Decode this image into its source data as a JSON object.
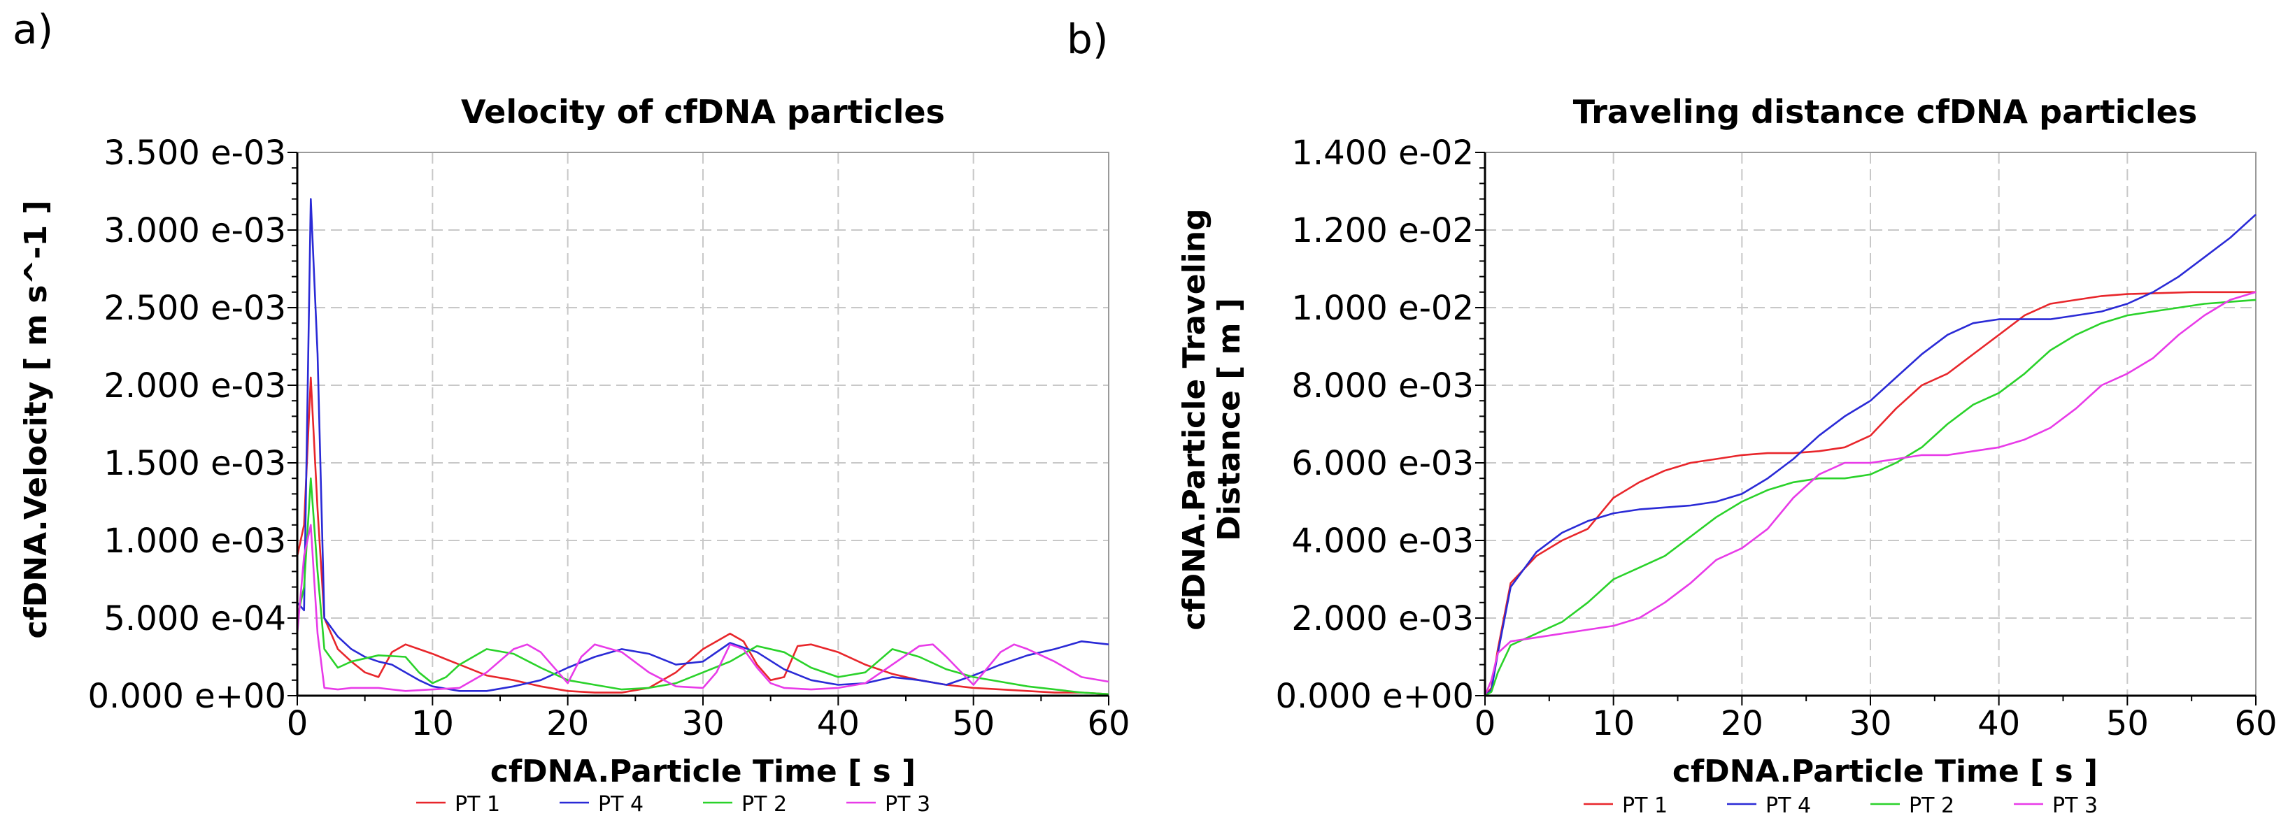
{
  "panels": [
    "a)",
    "b)"
  ],
  "chart_data": [
    {
      "type": "line",
      "panel": "a)",
      "title": "Velocity of cfDNA particles",
      "xlabel": "cfDNA.Particle Time [ s ]",
      "ylabel": "cfDNA.Velocity [ m s^-1 ]",
      "xlim": [
        0,
        60
      ],
      "ylim": [
        0,
        0.0035
      ],
      "xticks": [
        0,
        10,
        20,
        30,
        40,
        50,
        60
      ],
      "yticks": [
        0,
        0.0005,
        0.001,
        0.0015,
        0.002,
        0.0025,
        0.003,
        0.0035
      ],
      "ytick_labels": [
        "0.000 e+00",
        "5.000 e-04",
        "1.000 e-03",
        "1.500 e-03",
        "2.000 e-03",
        "2.500 e-03",
        "3.000 e-03",
        "3.500 e-03"
      ],
      "grid": true,
      "legend_position": "bottom",
      "series": [
        {
          "name": "PT 1",
          "color": "#e8262b",
          "x": [
            0,
            0.5,
            1,
            1.5,
            2,
            3,
            4,
            5,
            6,
            7,
            8,
            9,
            10,
            12,
            14,
            16,
            18,
            20,
            22,
            24,
            26,
            28,
            30,
            32,
            33,
            34,
            35,
            36,
            37,
            38,
            40,
            42,
            44,
            46,
            48,
            50,
            52,
            54,
            56,
            58,
            60
          ],
          "y": [
            0.0009,
            0.0011,
            0.00205,
            0.0012,
            0.0005,
            0.0003,
            0.00022,
            0.00015,
            0.00012,
            0.00028,
            0.00033,
            0.0003,
            0.00027,
            0.0002,
            0.00013,
            0.0001,
            6e-05,
            3e-05,
            2e-05,
            2e-05,
            5e-05,
            0.00015,
            0.0003,
            0.0004,
            0.00035,
            0.0002,
            0.0001,
            0.00012,
            0.00032,
            0.00033,
            0.00028,
            0.0002,
            0.00014,
            0.0001,
            7e-05,
            5e-05,
            4e-05,
            3e-05,
            2e-05,
            2e-05,
            1e-05
          ]
        },
        {
          "name": "PT 4",
          "color": "#2a2ad6",
          "x": [
            0,
            0.5,
            1,
            1.5,
            2,
            3,
            4,
            5,
            6,
            7,
            8,
            9,
            10,
            12,
            14,
            16,
            18,
            20,
            22,
            24,
            26,
            28,
            30,
            32,
            34,
            36,
            38,
            40,
            42,
            44,
            46,
            48,
            50,
            52,
            54,
            56,
            58,
            60
          ],
          "y": [
            0.0006,
            0.00055,
            0.0032,
            0.0022,
            0.0005,
            0.00038,
            0.0003,
            0.00025,
            0.00022,
            0.0002,
            0.00015,
            0.0001,
            6e-05,
            3e-05,
            3e-05,
            6e-05,
            0.0001,
            0.00018,
            0.00025,
            0.0003,
            0.00027,
            0.0002,
            0.00022,
            0.00034,
            0.00028,
            0.00017,
            0.0001,
            7e-05,
            8e-05,
            0.00012,
            0.0001,
            7e-05,
            0.00013,
            0.0002,
            0.00026,
            0.0003,
            0.00035,
            0.00033
          ]
        },
        {
          "name": "PT 2",
          "color": "#2ad22a",
          "x": [
            0,
            0.5,
            1,
            1.5,
            2,
            3,
            4,
            6,
            8,
            9,
            10,
            11,
            12,
            14,
            16,
            18,
            20,
            22,
            24,
            26,
            28,
            30,
            32,
            34,
            36,
            38,
            40,
            42,
            44,
            46,
            48,
            50,
            52,
            54,
            56,
            58,
            60
          ],
          "y": [
            0.0005,
            0.0007,
            0.0014,
            0.0008,
            0.0003,
            0.00018,
            0.00022,
            0.00026,
            0.00025,
            0.00015,
            8e-05,
            0.00012,
            0.0002,
            0.0003,
            0.00027,
            0.00018,
            0.0001,
            7e-05,
            4e-05,
            5e-05,
            8e-05,
            0.00015,
            0.00022,
            0.00032,
            0.00028,
            0.00018,
            0.00012,
            0.00015,
            0.0003,
            0.00025,
            0.00017,
            0.00012,
            9e-05,
            6e-05,
            4e-05,
            2e-05,
            1e-05
          ]
        },
        {
          "name": "PT 3",
          "color": "#e83be8",
          "x": [
            0,
            0.5,
            1,
            1.5,
            2,
            3,
            4,
            6,
            8,
            10,
            12,
            14,
            16,
            17,
            18,
            20,
            21,
            22,
            24,
            26,
            28,
            30,
            31,
            32,
            33,
            34,
            35,
            36,
            38,
            40,
            42,
            44,
            46,
            47,
            48,
            50,
            52,
            53,
            54,
            56,
            58,
            60
          ],
          "y": [
            0.0004,
            0.0009,
            0.0011,
            0.0004,
            5e-05,
            4e-05,
            5e-05,
            5e-05,
            3e-05,
            4e-05,
            5e-05,
            0.00015,
            0.0003,
            0.00033,
            0.00028,
            8e-05,
            0.00025,
            0.00033,
            0.00028,
            0.00015,
            6e-05,
            5e-05,
            0.00015,
            0.00033,
            0.0003,
            0.00018,
            8e-05,
            5e-05,
            4e-05,
            5e-05,
            8e-05,
            0.0002,
            0.00032,
            0.00033,
            0.00025,
            7e-05,
            0.00028,
            0.00033,
            0.0003,
            0.00022,
            0.00012,
            9e-05
          ]
        }
      ]
    },
    {
      "type": "line",
      "panel": "b)",
      "title": "Traveling distance cfDNA particles",
      "xlabel": "cfDNA.Particle Time [ s ]",
      "ylabel": "cfDNA.Particle Traveling Distance [ m ]",
      "ylabel_lines": [
        "cfDNA.Particle Traveling",
        "Distance [ m ]"
      ],
      "xlim": [
        0,
        60
      ],
      "ylim": [
        0,
        0.014
      ],
      "xticks": [
        0,
        10,
        20,
        30,
        40,
        50,
        60
      ],
      "yticks": [
        0,
        0.002,
        0.004,
        0.006,
        0.008,
        0.01,
        0.012,
        0.014
      ],
      "ytick_labels": [
        "0.000 e+00",
        "2.000 e-03",
        "4.000 e-03",
        "6.000 e-03",
        "8.000 e-03",
        "1.000 e-02",
        "1.200 e-02",
        "1.400 e-02"
      ],
      "grid": true,
      "legend_position": "bottom",
      "series": [
        {
          "name": "PT 1",
          "color": "#e8262b",
          "x": [
            0,
            0.5,
            1,
            2,
            4,
            6,
            8,
            10,
            12,
            14,
            16,
            18,
            20,
            22,
            24,
            26,
            28,
            30,
            32,
            34,
            36,
            38,
            40,
            42,
            44,
            46,
            48,
            50,
            55,
            60
          ],
          "y": [
            0,
            0.0002,
            0.0012,
            0.0029,
            0.0036,
            0.004,
            0.0043,
            0.0051,
            0.0055,
            0.0058,
            0.006,
            0.0061,
            0.0062,
            0.00625,
            0.00625,
            0.0063,
            0.0064,
            0.0067,
            0.0074,
            0.008,
            0.0083,
            0.0088,
            0.0093,
            0.0098,
            0.0101,
            0.0102,
            0.0103,
            0.01035,
            0.0104,
            0.0104
          ]
        },
        {
          "name": "PT 4",
          "color": "#2a2ad6",
          "x": [
            0,
            0.5,
            1,
            2,
            4,
            6,
            8,
            10,
            12,
            14,
            16,
            18,
            20,
            22,
            24,
            26,
            28,
            30,
            32,
            34,
            36,
            38,
            40,
            42,
            44,
            46,
            48,
            50,
            52,
            54,
            56,
            58,
            60
          ],
          "y": [
            0,
            0.00015,
            0.0011,
            0.0028,
            0.0037,
            0.0042,
            0.0045,
            0.0047,
            0.0048,
            0.00485,
            0.0049,
            0.005,
            0.0052,
            0.0056,
            0.0061,
            0.0067,
            0.0072,
            0.0076,
            0.0082,
            0.0088,
            0.0093,
            0.0096,
            0.0097,
            0.0097,
            0.0097,
            0.0098,
            0.0099,
            0.0101,
            0.0104,
            0.0108,
            0.0113,
            0.0118,
            0.0124
          ]
        },
        {
          "name": "PT 2",
          "color": "#2ad22a",
          "x": [
            0,
            0.5,
            1,
            2,
            4,
            6,
            8,
            10,
            12,
            14,
            16,
            18,
            20,
            22,
            24,
            26,
            28,
            30,
            32,
            34,
            36,
            38,
            40,
            42,
            44,
            46,
            48,
            50,
            52,
            54,
            56,
            58,
            60
          ],
          "y": [
            0,
            0.0001,
            0.0006,
            0.0013,
            0.0016,
            0.0019,
            0.0024,
            0.003,
            0.0033,
            0.0036,
            0.0041,
            0.0046,
            0.005,
            0.0053,
            0.0055,
            0.0056,
            0.0056,
            0.0057,
            0.006,
            0.0064,
            0.007,
            0.0075,
            0.0078,
            0.0083,
            0.0089,
            0.0093,
            0.0096,
            0.0098,
            0.0099,
            0.01,
            0.0101,
            0.01015,
            0.0102
          ]
        },
        {
          "name": "PT 3",
          "color": "#e83be8",
          "x": [
            0,
            0.5,
            1,
            2,
            4,
            6,
            8,
            10,
            12,
            14,
            16,
            18,
            20,
            22,
            24,
            26,
            28,
            30,
            32,
            34,
            36,
            38,
            40,
            42,
            44,
            46,
            48,
            50,
            52,
            54,
            56,
            58,
            60
          ],
          "y": [
            0,
            0.0004,
            0.0011,
            0.0014,
            0.0015,
            0.0016,
            0.0017,
            0.0018,
            0.002,
            0.0024,
            0.0029,
            0.0035,
            0.0038,
            0.0043,
            0.0051,
            0.0057,
            0.006,
            0.006,
            0.0061,
            0.0062,
            0.0062,
            0.0063,
            0.0064,
            0.0066,
            0.0069,
            0.0074,
            0.008,
            0.0083,
            0.0087,
            0.0093,
            0.0098,
            0.0102,
            0.0104
          ]
        }
      ]
    }
  ]
}
